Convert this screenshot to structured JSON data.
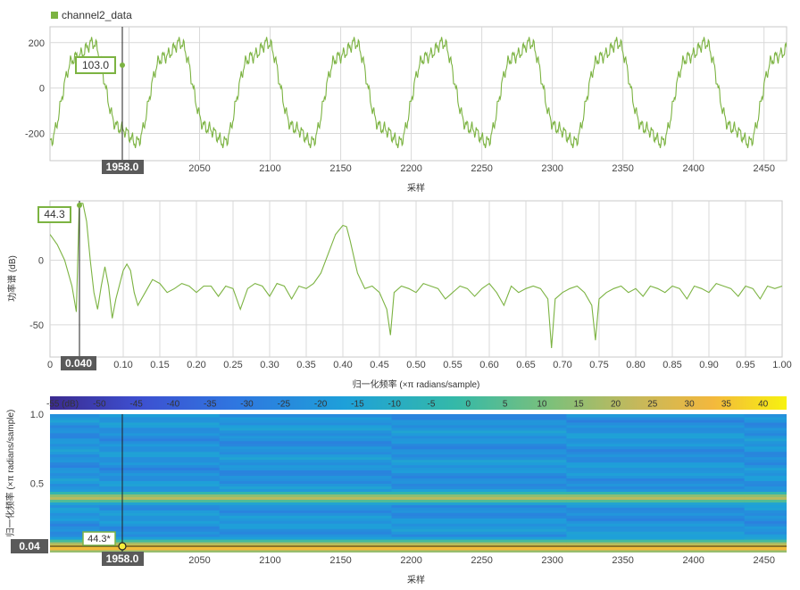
{
  "colors": {
    "trace": "#7cb342",
    "trace_dark": "#6ea033",
    "grid": "#d9d9d9",
    "axis": "#555555",
    "cursor_label_bg": "#5a5a5a",
    "cursor_label_fg": "#ffffff",
    "readout_border": "#7cb342"
  },
  "top": {
    "legend_label": "channel2_data",
    "xlabel": "采样",
    "cursor_x_label": "1958.0",
    "readout": "103.0",
    "yticks": [
      "200",
      "0",
      "-200"
    ],
    "xticks": [
      "2000",
      "2050",
      "2100",
      "2150",
      "2200",
      "2250",
      "2300",
      "2350",
      "2400",
      "2450"
    ]
  },
  "mid": {
    "ylabel": "功率谱 (dB)",
    "xlabel": "归一化频率 (×π radians/sample)",
    "cursor_x_label": "0.040",
    "readout": "44.3",
    "yticks": [
      "0",
      "-50"
    ],
    "xticks": [
      "0",
      "0.10",
      "0.15",
      "0.20",
      "0.25",
      "0.30",
      "0.35",
      "0.40",
      "0.45",
      "0.50",
      "0.55",
      "0.60",
      "0.65",
      "0.70",
      "0.75",
      "0.80",
      "0.85",
      "0.90",
      "0.95",
      "1.00"
    ]
  },
  "bottom": {
    "ylabel": "归一化频率 (×π radians/sample)",
    "xlabel": "采样",
    "cursor_x_label": "1958.0",
    "cursor_y_label": "0.04",
    "readout": "44.3*",
    "yticks": [
      "1.0",
      "0.5"
    ],
    "xticks": [
      "2000",
      "2050",
      "2100",
      "2150",
      "2200",
      "2250",
      "2300",
      "2350",
      "2400",
      "2450"
    ],
    "colorbar_labels": [
      "-55 (dB)",
      "-50",
      "-45",
      "-40",
      "-35",
      "-30",
      "-25",
      "-20",
      "-15",
      "-10",
      "-5",
      "0",
      "5",
      "10",
      "15",
      "20",
      "25",
      "30",
      "35",
      "40"
    ]
  },
  "chart_data": [
    {
      "type": "line",
      "series": [
        {
          "name": "channel2_data"
        }
      ],
      "xlabel": "采样",
      "xlim": [
        1944,
        2466
      ],
      "ylim": [
        -320,
        270
      ],
      "period": 62,
      "amplitude": 220,
      "cursor": {
        "x": 1958.0,
        "y": 103.0
      }
    },
    {
      "type": "line",
      "xlabel": "归一化频率 (×π radians/sample)",
      "ylabel": "功率谱 (dB)",
      "xlim": [
        0,
        1.0
      ],
      "ylim": [
        -75,
        46
      ],
      "points": [
        [
          0.0,
          20
        ],
        [
          0.01,
          12
        ],
        [
          0.02,
          0
        ],
        [
          0.03,
          -20
        ],
        [
          0.036,
          -40
        ],
        [
          0.04,
          44.3
        ],
        [
          0.045,
          44
        ],
        [
          0.05,
          30
        ],
        [
          0.055,
          0
        ],
        [
          0.06,
          -25
        ],
        [
          0.065,
          -38
        ],
        [
          0.07,
          -20
        ],
        [
          0.075,
          -5
        ],
        [
          0.08,
          -20
        ],
        [
          0.085,
          -45
        ],
        [
          0.09,
          -30
        ],
        [
          0.1,
          -8
        ],
        [
          0.105,
          -3
        ],
        [
          0.11,
          -8
        ],
        [
          0.115,
          -25
        ],
        [
          0.12,
          -35
        ],
        [
          0.13,
          -25
        ],
        [
          0.14,
          -15
        ],
        [
          0.15,
          -18
        ],
        [
          0.16,
          -25
        ],
        [
          0.17,
          -22
        ],
        [
          0.18,
          -18
        ],
        [
          0.19,
          -20
        ],
        [
          0.2,
          -25
        ],
        [
          0.21,
          -20
        ],
        [
          0.22,
          -20
        ],
        [
          0.23,
          -28
        ],
        [
          0.24,
          -20
        ],
        [
          0.25,
          -22
        ],
        [
          0.26,
          -38
        ],
        [
          0.27,
          -22
        ],
        [
          0.28,
          -18
        ],
        [
          0.29,
          -20
        ],
        [
          0.3,
          -28
        ],
        [
          0.31,
          -18
        ],
        [
          0.32,
          -20
        ],
        [
          0.33,
          -30
        ],
        [
          0.34,
          -20
        ],
        [
          0.35,
          -22
        ],
        [
          0.36,
          -18
        ],
        [
          0.37,
          -10
        ],
        [
          0.38,
          5
        ],
        [
          0.39,
          20
        ],
        [
          0.4,
          27
        ],
        [
          0.405,
          26
        ],
        [
          0.41,
          15
        ],
        [
          0.42,
          -10
        ],
        [
          0.43,
          -22
        ],
        [
          0.44,
          -20
        ],
        [
          0.45,
          -25
        ],
        [
          0.46,
          -38
        ],
        [
          0.465,
          -58
        ],
        [
          0.47,
          -25
        ],
        [
          0.48,
          -20
        ],
        [
          0.49,
          -22
        ],
        [
          0.5,
          -25
        ],
        [
          0.51,
          -18
        ],
        [
          0.52,
          -20
        ],
        [
          0.53,
          -22
        ],
        [
          0.54,
          -30
        ],
        [
          0.55,
          -25
        ],
        [
          0.56,
          -20
        ],
        [
          0.57,
          -22
        ],
        [
          0.58,
          -28
        ],
        [
          0.59,
          -22
        ],
        [
          0.6,
          -18
        ],
        [
          0.61,
          -25
        ],
        [
          0.62,
          -35
        ],
        [
          0.63,
          -20
        ],
        [
          0.64,
          -25
        ],
        [
          0.65,
          -22
        ],
        [
          0.66,
          -20
        ],
        [
          0.67,
          -22
        ],
        [
          0.68,
          -30
        ],
        [
          0.685,
          -68
        ],
        [
          0.69,
          -30
        ],
        [
          0.7,
          -25
        ],
        [
          0.71,
          -22
        ],
        [
          0.72,
          -20
        ],
        [
          0.73,
          -25
        ],
        [
          0.74,
          -35
        ],
        [
          0.745,
          -62
        ],
        [
          0.75,
          -30
        ],
        [
          0.76,
          -25
        ],
        [
          0.77,
          -22
        ],
        [
          0.78,
          -20
        ],
        [
          0.79,
          -25
        ],
        [
          0.8,
          -22
        ],
        [
          0.81,
          -28
        ],
        [
          0.82,
          -20
        ],
        [
          0.83,
          -22
        ],
        [
          0.84,
          -25
        ],
        [
          0.85,
          -20
        ],
        [
          0.86,
          -22
        ],
        [
          0.87,
          -30
        ],
        [
          0.88,
          -20
        ],
        [
          0.89,
          -22
        ],
        [
          0.9,
          -25
        ],
        [
          0.91,
          -18
        ],
        [
          0.92,
          -20
        ],
        [
          0.93,
          -22
        ],
        [
          0.94,
          -28
        ],
        [
          0.95,
          -20
        ],
        [
          0.96,
          -22
        ],
        [
          0.97,
          -30
        ],
        [
          0.98,
          -20
        ],
        [
          0.99,
          -22
        ],
        [
          1.0,
          -20
        ]
      ],
      "cursor": {
        "x": 0.04,
        "y": 44.3
      }
    },
    {
      "type": "heatmap",
      "xlabel": "采样",
      "ylabel": "归一化频率 (×π radians/sample)",
      "xlim": [
        1944,
        2466
      ],
      "ylim": [
        0,
        1.0
      ],
      "clim": [
        -55,
        44
      ],
      "time_segments": [
        1944,
        1979,
        2064,
        2186,
        2310,
        2436,
        2466
      ],
      "bands": [
        {
          "freq": 0.04,
          "level": 44
        },
        {
          "freq": 0.4,
          "level": 27
        }
      ],
      "cursor": {
        "x": 1958.0,
        "y": 0.04,
        "value": 44.3
      }
    }
  ]
}
